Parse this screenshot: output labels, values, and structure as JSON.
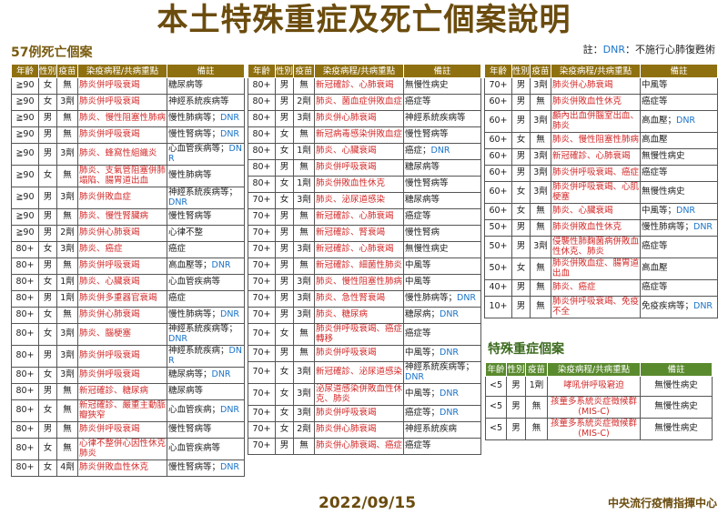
{
  "title": "本土特殊重症及死亡個案說明",
  "note": {
    "prefix": "註：",
    "dnr": "DNR",
    "text": "：不施行心肺復甦術"
  },
  "death_section": "57例死亡個案",
  "special_section": "特殊重症個案",
  "headers": [
    "年齡",
    "性別",
    "疫苗",
    "染疫病程/共病重點",
    "備註"
  ],
  "death_tables": [
    [
      [
        "≧90",
        "女",
        "無",
        "肺炎併呼吸衰竭",
        "糖尿病等",
        ""
      ],
      [
        "≧90",
        "女",
        "3劑",
        "肺炎併呼吸衰竭",
        "神經系統疾病等",
        ""
      ],
      [
        "≧90",
        "男",
        "無",
        "肺炎、慢性阻塞性肺病",
        "慢性肺病等；",
        "DNR"
      ],
      [
        "≧90",
        "男",
        "無",
        "肺炎併呼吸衰竭",
        "慢性腎病等；",
        "DNR"
      ],
      [
        "≧90",
        "男",
        "3劑",
        "肺炎、蜂窩性組織炎",
        "心血管疾病等；",
        "DNR"
      ],
      [
        "≧90",
        "女",
        "無",
        "肺炎、支氣管阻塞併肺塌陷、腸胃道出血",
        "慢性肺病等",
        ""
      ],
      [
        "≧90",
        "男",
        "3劑",
        "肺炎併敗血症",
        "神經系統疾病等；",
        "DNR"
      ],
      [
        "≧90",
        "男",
        "無",
        "肺炎、慢性腎臟病",
        "慢性腎病等",
        ""
      ],
      [
        "≧90",
        "男",
        "2劑",
        "肺炎併心肺衰竭",
        "心律不整",
        ""
      ],
      [
        "80+",
        "女",
        "3劑",
        "肺炎、癌症",
        "癌症",
        ""
      ],
      [
        "80+",
        "男",
        "無",
        "肺炎併呼吸衰竭",
        "高血壓等；",
        "DNR"
      ],
      [
        "80+",
        "女",
        "1劑",
        "肺炎、心臟衰竭",
        "心血管疾病等",
        ""
      ],
      [
        "80+",
        "男",
        "1劑",
        "肺炎併多重器官衰竭",
        "癌症",
        ""
      ],
      [
        "80+",
        "女",
        "無",
        "肺炎併心肺衰竭",
        "慢性肺病等；",
        "DNR"
      ],
      [
        "80+",
        "女",
        "3劑",
        "肺炎、腦梗塞",
        "神經系統疾病等；",
        "DNR"
      ],
      [
        "80+",
        "男",
        "3劑",
        "肺炎併呼吸衰竭",
        "神經系統疾病；",
        "DNR"
      ],
      [
        "80+",
        "女",
        "3劑",
        "肺炎併呼吸衰竭",
        "糖尿病等；",
        "DNR"
      ],
      [
        "80+",
        "男",
        "無",
        "新冠確診、糖尿病",
        "糖尿病等",
        ""
      ],
      [
        "80+",
        "女",
        "無",
        "新冠確診、嚴重主動脈瓣狹窄",
        "心血管疾病；",
        "DNR"
      ],
      [
        "80+",
        "男",
        "無",
        "肺炎併呼吸衰竭",
        "慢性腎病等",
        ""
      ],
      [
        "80+",
        "女",
        "無",
        "心律不整併心因性休克肺炎",
        "心血管疾病等",
        ""
      ],
      [
        "80+",
        "女",
        "4劑",
        "肺炎併敗血性休克",
        "慢性腎病等；",
        "DNR"
      ]
    ],
    [
      [
        "80+",
        "男",
        "無",
        "新冠確診、心肺衰竭",
        "無慢性病史",
        ""
      ],
      [
        "80+",
        "男",
        "2劑",
        "肺炎、菌血症併敗血症",
        "癌症等",
        ""
      ],
      [
        "80+",
        "男",
        "3劑",
        "肺炎併心肺衰竭",
        "神經系統疾病等",
        ""
      ],
      [
        "80+",
        "女",
        "無",
        "新冠病毒感染併敗血症",
        "慢性腎病等",
        ""
      ],
      [
        "80+",
        "女",
        "1劑",
        "肺炎、心臟衰竭",
        "癌症；",
        "DNR"
      ],
      [
        "80+",
        "男",
        "無",
        "肺炎併呼吸衰竭",
        "糖尿病等",
        ""
      ],
      [
        "80+",
        "女",
        "1劑",
        "肺炎併敗血性休克",
        "慢性腎病等",
        ""
      ],
      [
        "70+",
        "女",
        "3劑",
        "肺炎、泌尿道感染",
        "糖尿病等",
        ""
      ],
      [
        "70+",
        "男",
        "無",
        "新冠確診、心肺衰竭",
        "癌症等",
        ""
      ],
      [
        "70+",
        "男",
        "無",
        "新冠確診、腎衰竭",
        "慢性腎病",
        ""
      ],
      [
        "70+",
        "男",
        "3劑",
        "新冠確診、心肺衰竭",
        "無慢性病史",
        ""
      ],
      [
        "70+",
        "男",
        "無",
        "新冠確診、細菌性肺炎",
        "中風等",
        ""
      ],
      [
        "70+",
        "男",
        "3劑",
        "肺炎、慢性阻塞性肺病",
        "中風等",
        ""
      ],
      [
        "70+",
        "男",
        "3劑",
        "肺炎、急性腎衰竭",
        "慢性肺病等；",
        "DNR"
      ],
      [
        "70+",
        "男",
        "3劑",
        "肺炎、糖尿病",
        "糖尿病；",
        "DNR"
      ],
      [
        "70+",
        "女",
        "無",
        "肺炎併呼吸衰竭、癌症轉移",
        "癌症等",
        ""
      ],
      [
        "70+",
        "男",
        "無",
        "肺炎併呼吸衰竭",
        "中風等；",
        "DNR"
      ],
      [
        "70+",
        "女",
        "3劑",
        "新冠確診、泌尿道感染",
        "神經系統疾病等；",
        "DNR"
      ],
      [
        "70+",
        "女",
        "3劑",
        "泌尿道感染併敗血性休克、肺炎",
        "中風等；",
        "DNR"
      ],
      [
        "70+",
        "女",
        "3劑",
        "肺炎併呼吸衰竭",
        "癌症等；",
        "DNR"
      ],
      [
        "70+",
        "女",
        "2劑",
        "肺炎併心肺衰竭",
        "神經系統疾病",
        ""
      ],
      [
        "70+",
        "男",
        "無",
        "肺炎併心肺衰竭、癌症",
        "癌症等",
        ""
      ]
    ],
    [
      [
        "70+",
        "男",
        "3劑",
        "肺炎併心肺衰竭",
        "中風等",
        ""
      ],
      [
        "60+",
        "男",
        "無",
        "肺炎併敗血性休克",
        "癌症等",
        ""
      ],
      [
        "60+",
        "男",
        "3劑",
        "顱內出血併腦室出血、肺炎",
        "高血壓；",
        "DNR"
      ],
      [
        "60+",
        "女",
        "無",
        "肺炎、慢性阻塞性肺病",
        "高血壓",
        ""
      ],
      [
        "60+",
        "男",
        "3劑",
        "新冠確診、心肺衰竭",
        "無慢性病史",
        ""
      ],
      [
        "60+",
        "男",
        "3劑",
        "肺炎併呼吸衰竭、癌症",
        "癌症等",
        ""
      ],
      [
        "60+",
        "女",
        "3劑",
        "肺炎併呼吸衰竭、心肌梗塞",
        "無慢性病史",
        ""
      ],
      [
        "60+",
        "女",
        "無",
        "肺炎、心臟衰竭",
        "中風等；",
        "DNR"
      ],
      [
        "50+",
        "男",
        "無",
        "肺炎併敗血性休克",
        "慢性肺病等；",
        "DNR"
      ],
      [
        "50+",
        "男",
        "3劑",
        "侵襲性肺麴菌病併敗血性休克、肺炎",
        "癌症等",
        ""
      ],
      [
        "50+",
        "女",
        "無",
        "肺炎併敗血症、腸胃道出血",
        "高血壓",
        ""
      ],
      [
        "40+",
        "男",
        "無",
        "肺炎、癌症",
        "癌症等",
        ""
      ],
      [
        "10+",
        "男",
        "無",
        "肺炎併呼吸衰竭、免疫不全",
        "免疫疾病等；",
        "DNR"
      ]
    ]
  ],
  "special_cases": [
    [
      "<5",
      "男",
      "1劑",
      "哮吼併呼吸窘迫",
      "無慢性病史",
      ""
    ],
    [
      "<5",
      "男",
      "無",
      "孩童多系統炎症徵候群(MIS-C)",
      "無慢性病史",
      ""
    ],
    [
      "<5",
      "男",
      "無",
      "孩童多系統炎症徵候群(MIS-C)",
      "無慢性病史",
      ""
    ]
  ],
  "date": "2022/09/15",
  "organization": "中央流行疫情指揮中心",
  "colors": {
    "title": "#6b4c0e",
    "death_header": "#8f7010",
    "special_header": "#5a8a2e",
    "course_text": "#d42a2a",
    "dnr": "#1a73c8"
  }
}
